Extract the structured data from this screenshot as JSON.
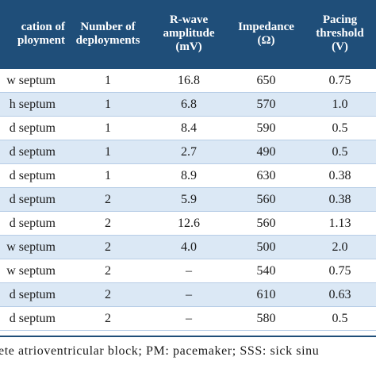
{
  "headers": [
    [
      "cation of",
      "ployment"
    ],
    [
      "Number of",
      "deployments"
    ],
    [
      "R-wave",
      "amplitude",
      "(mV)"
    ],
    [
      "Impedance",
      "(Ω)"
    ],
    [
      "Pacing",
      "threshold",
      "(V)"
    ]
  ],
  "rows": [
    [
      "w septum",
      "1",
      "16.8",
      "650",
      "0.75"
    ],
    [
      "h septum",
      "1",
      "6.8",
      "570",
      "1.0"
    ],
    [
      "d septum",
      "1",
      "8.4",
      "590",
      "0.5"
    ],
    [
      "d septum",
      "1",
      "2.7",
      "490",
      "0.5"
    ],
    [
      "d septum",
      "1",
      "8.9",
      "630",
      "0.38"
    ],
    [
      "d septum",
      "2",
      "5.9",
      "560",
      "0.38"
    ],
    [
      "d septum",
      "2",
      "12.6",
      "560",
      "1.13"
    ],
    [
      "w septum",
      "2",
      "4.0",
      "500",
      "2.0"
    ],
    [
      "w septum",
      "2",
      "–",
      "540",
      "0.75"
    ],
    [
      "d septum",
      "2",
      "–",
      "610",
      "0.63"
    ],
    [
      "d septum",
      "2",
      "–",
      "580",
      "0.5"
    ]
  ],
  "footnote": "ete atrioventricular block; PM: pacemaker; SSS: sick sinu",
  "colors": {
    "header_bg": "#1f4e79",
    "header_text": "#ffffff",
    "stripe": "#dbe8f5",
    "rule": "#b7cde6"
  }
}
